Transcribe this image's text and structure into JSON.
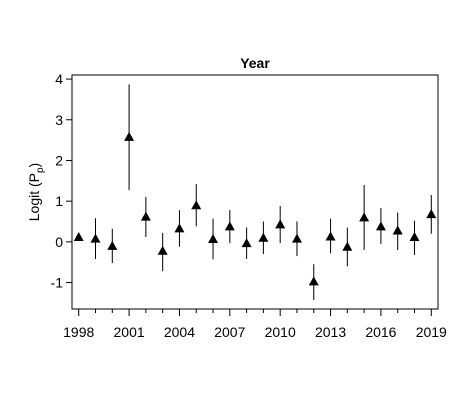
{
  "chart_data": {
    "type": "scatter",
    "title": "Year",
    "xlabel": "",
    "ylabel": "Logit (P",
    "ylabel_subscript": "p",
    "ylabel_suffix": ")",
    "xlim": [
      1997.6,
      2019.4
    ],
    "ylim": [
      -1.65,
      4.1
    ],
    "x_ticks": [
      1998,
      2001,
      2004,
      2007,
      2010,
      2013,
      2016,
      2019
    ],
    "x_minor_step": 1,
    "y_ticks": [
      -1,
      0,
      1,
      2,
      3,
      4
    ],
    "y_tick_labels": [
      "-1",
      "0",
      "1",
      "2",
      "3",
      "4"
    ],
    "marker": "triangle",
    "grid": false,
    "legend": "none",
    "points": [
      {
        "x": 1998,
        "y": 0.12,
        "lower": 0.05,
        "upper": 0.2
      },
      {
        "x": 1999,
        "y": 0.08,
        "lower": -0.42,
        "upper": 0.58
      },
      {
        "x": 2000,
        "y": -0.1,
        "lower": -0.52,
        "upper": 0.32
      },
      {
        "x": 2001,
        "y": 2.58,
        "lower": 1.27,
        "upper": 3.87
      },
      {
        "x": 2002,
        "y": 0.62,
        "lower": 0.12,
        "upper": 1.1
      },
      {
        "x": 2003,
        "y": -0.22,
        "lower": -0.72,
        "upper": 0.22
      },
      {
        "x": 2004,
        "y": 0.33,
        "lower": -0.12,
        "upper": 0.78
      },
      {
        "x": 2005,
        "y": 0.9,
        "lower": 0.38,
        "upper": 1.42
      },
      {
        "x": 2006,
        "y": 0.07,
        "lower": -0.43,
        "upper": 0.57
      },
      {
        "x": 2007,
        "y": 0.38,
        "lower": -0.03,
        "upper": 0.78
      },
      {
        "x": 2008,
        "y": -0.03,
        "lower": -0.42,
        "upper": 0.35
      },
      {
        "x": 2009,
        "y": 0.1,
        "lower": -0.3,
        "upper": 0.5
      },
      {
        "x": 2010,
        "y": 0.43,
        "lower": -0.03,
        "upper": 0.88
      },
      {
        "x": 2011,
        "y": 0.08,
        "lower": -0.35,
        "upper": 0.5
      },
      {
        "x": 2012,
        "y": -0.97,
        "lower": -1.43,
        "upper": -0.55
      },
      {
        "x": 2013,
        "y": 0.13,
        "lower": -0.28,
        "upper": 0.57
      },
      {
        "x": 2014,
        "y": -0.12,
        "lower": -0.6,
        "upper": 0.35
      },
      {
        "x": 2015,
        "y": 0.6,
        "lower": -0.2,
        "upper": 1.4
      },
      {
        "x": 2016,
        "y": 0.38,
        "lower": -0.05,
        "upper": 0.83
      },
      {
        "x": 2017,
        "y": 0.28,
        "lower": -0.2,
        "upper": 0.72
      },
      {
        "x": 2018,
        "y": 0.12,
        "lower": -0.32,
        "upper": 0.52
      },
      {
        "x": 2019,
        "y": 0.68,
        "lower": 0.2,
        "upper": 1.15
      }
    ]
  }
}
